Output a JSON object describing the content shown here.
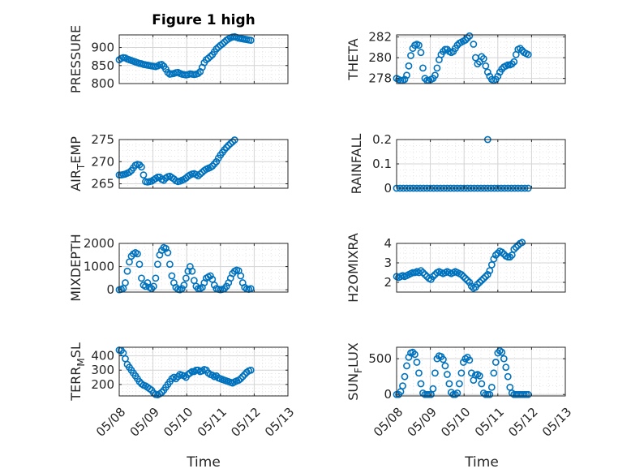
{
  "figure": {
    "title": "Figure 1 high",
    "xlabel": "Time"
  },
  "chart_data": [
    {
      "type": "scatter",
      "ylabel": "PRESSURE",
      "ylim": [
        800,
        935
      ],
      "yticks": [
        800,
        850,
        900
      ],
      "xlim": [
        0,
        5
      ],
      "grid": "on",
      "minor_grid": "on",
      "marker": "o",
      "color": "#0072BD",
      "x": [
        0,
        0.06,
        0.12,
        0.18,
        0.24,
        0.3,
        0.36,
        0.42,
        0.48,
        0.54,
        0.6,
        0.66,
        0.72,
        0.78,
        0.84,
        0.9,
        0.96,
        1.02,
        1.08,
        1.14,
        1.2,
        1.26,
        1.32,
        1.38,
        1.44,
        1.5,
        1.56,
        1.62,
        1.68,
        1.74,
        1.8,
        1.86,
        1.92,
        1.98,
        2.04,
        2.1,
        2.16,
        2.22,
        2.28,
        2.34,
        2.4,
        2.46,
        2.52,
        2.58,
        2.64,
        2.7,
        2.76,
        2.82,
        2.88,
        2.94,
        3.0,
        3.06,
        3.12,
        3.18,
        3.24,
        3.3,
        3.36,
        3.42,
        3.48,
        3.54,
        3.6,
        3.66,
        3.72,
        3.78,
        3.84,
        3.9
      ],
      "y": [
        866,
        870,
        872,
        871,
        868,
        866,
        864,
        862,
        860,
        858,
        856,
        855,
        853,
        852,
        851,
        850,
        849,
        848,
        847,
        849,
        852,
        853,
        848,
        840,
        831,
        826,
        827,
        828,
        830,
        831,
        828,
        826,
        825,
        824,
        825,
        827,
        826,
        825,
        826,
        828,
        833,
        845,
        858,
        866,
        870,
        875,
        880,
        888,
        896,
        901,
        906,
        910,
        915,
        920,
        924,
        927,
        929,
        930,
        928,
        926,
        925,
        924,
        923,
        922,
        921,
        920
      ]
    },
    {
      "type": "scatter",
      "ylabel": "THETA",
      "ylim": [
        277.5,
        282.2
      ],
      "yticks": [
        278,
        280,
        282
      ],
      "xlim": [
        0,
        5
      ],
      "grid": "on",
      "minor_grid": "on",
      "marker": "o",
      "color": "#0072BD",
      "x": [
        0,
        0.06,
        0.12,
        0.18,
        0.24,
        0.3,
        0.36,
        0.42,
        0.48,
        0.54,
        0.6,
        0.66,
        0.72,
        0.78,
        0.84,
        0.9,
        0.96,
        1.02,
        1.08,
        1.14,
        1.2,
        1.26,
        1.32,
        1.38,
        1.44,
        1.5,
        1.56,
        1.62,
        1.68,
        1.74,
        1.8,
        1.86,
        1.92,
        1.98,
        2.04,
        2.1,
        2.16,
        2.22,
        2.28,
        2.34,
        2.4,
        2.46,
        2.52,
        2.58,
        2.64,
        2.7,
        2.76,
        2.82,
        2.88,
        2.94,
        3.0,
        3.06,
        3.12,
        3.18,
        3.24,
        3.3,
        3.36,
        3.42,
        3.48,
        3.54,
        3.6,
        3.66,
        3.72,
        3.78,
        3.84,
        3.9
      ],
      "y": [
        278.0,
        277.9,
        277.8,
        277.8,
        277.9,
        278.3,
        279.2,
        280.2,
        280.9,
        281.2,
        281.3,
        281.2,
        280.5,
        279.0,
        278.0,
        277.8,
        277.8,
        277.9,
        278.0,
        278.3,
        279.0,
        279.8,
        280.3,
        280.6,
        280.8,
        280.8,
        280.6,
        280.5,
        280.6,
        280.9,
        281.2,
        281.4,
        281.5,
        281.6,
        281.7,
        281.9,
        282.1,
        282.3,
        281.3,
        280.0,
        279.4,
        279.6,
        280.1,
        279.9,
        279.2,
        278.6,
        278.2,
        277.9,
        277.8,
        277.9,
        278.2,
        278.6,
        278.9,
        279.1,
        279.2,
        279.3,
        279.3,
        279.4,
        279.6,
        280.3,
        280.8,
        280.9,
        280.7,
        280.5,
        280.4,
        280.3
      ]
    },
    {
      "type": "scatter",
      "ylabel": "AIR_TEMP",
      "ylim": [
        264,
        275
      ],
      "yticks": [
        265,
        270,
        275
      ],
      "xlim": [
        0,
        5
      ],
      "grid": "on",
      "minor_grid": "on",
      "marker": "o",
      "color": "#0072BD",
      "x": [
        0,
        0.06,
        0.12,
        0.18,
        0.24,
        0.3,
        0.36,
        0.42,
        0.48,
        0.54,
        0.6,
        0.66,
        0.72,
        0.78,
        0.84,
        0.9,
        0.96,
        1.02,
        1.08,
        1.14,
        1.2,
        1.26,
        1.32,
        1.38,
        1.44,
        1.5,
        1.56,
        1.62,
        1.68,
        1.74,
        1.8,
        1.86,
        1.92,
        1.98,
        2.04,
        2.1,
        2.16,
        2.22,
        2.28,
        2.34,
        2.4,
        2.46,
        2.52,
        2.58,
        2.64,
        2.7,
        2.76,
        2.82,
        2.88,
        2.94,
        3.0,
        3.06,
        3.12,
        3.18,
        3.24,
        3.3,
        3.36,
        3.42,
        3.48,
        3.54,
        3.6,
        3.66,
        3.72,
        3.78,
        3.84,
        3.9
      ],
      "y": [
        267,
        267,
        267.1,
        267.2,
        267.4,
        267.6,
        268,
        268.6,
        269.2,
        269.4,
        269.3,
        268.8,
        267,
        265.5,
        265.4,
        265.5,
        265.6,
        265.9,
        266.2,
        266.5,
        266.5,
        266,
        265.8,
        266.3,
        266.6,
        266.7,
        266.4,
        266.1,
        265.7,
        265.5,
        265.6,
        265.8,
        266,
        266.3,
        266.7,
        267,
        267.2,
        267.3,
        267.1,
        266.8,
        267.2,
        267.6,
        268,
        268.3,
        268.5,
        268.7,
        269,
        269.5,
        270,
        270.8,
        271.5,
        272.1,
        272.7,
        273.2,
        273.7,
        274.1,
        274.5,
        274.9,
        275.3,
        275.7,
        276,
        276.3,
        276.6,
        276.9,
        277.2,
        277.5
      ]
    },
    {
      "type": "scatter",
      "ylabel": "RAINFALL",
      "ylim": [
        0,
        0.2
      ],
      "yticks": [
        0,
        0.1,
        0.2
      ],
      "xlim": [
        0,
        5
      ],
      "grid": "on",
      "minor_grid": "on",
      "marker": "o",
      "color": "#0072BD",
      "x": [
        0,
        0.1,
        0.2,
        0.3,
        0.4,
        0.5,
        0.6,
        0.7,
        0.8,
        0.9,
        1.0,
        1.1,
        1.2,
        1.3,
        1.4,
        1.5,
        1.6,
        1.7,
        1.8,
        1.9,
        2.0,
        2.1,
        2.2,
        2.3,
        2.4,
        2.5,
        2.6,
        2.7,
        2.8,
        2.9,
        3.0,
        3.1,
        3.2,
        3.3,
        3.4,
        3.5,
        3.6,
        3.7,
        3.8,
        3.9,
        2.7
      ],
      "y": [
        0,
        0,
        0,
        0,
        0,
        0,
        0,
        0,
        0,
        0,
        0,
        0,
        0,
        0,
        0,
        0,
        0,
        0,
        0,
        0,
        0,
        0,
        0,
        0,
        0,
        0,
        0,
        0,
        0,
        0,
        0,
        0,
        0,
        0,
        0,
        0,
        0,
        0,
        0,
        0,
        0.2
      ]
    },
    {
      "type": "scatter",
      "ylabel": "MIXDEPTH",
      "ylim": [
        -100,
        2000
      ],
      "yticks": [
        0,
        1000,
        2000
      ],
      "xlim": [
        0,
        5
      ],
      "grid": "on",
      "minor_grid": "on",
      "marker": "o",
      "color": "#0072BD",
      "x": [
        0,
        0.06,
        0.12,
        0.18,
        0.24,
        0.3,
        0.36,
        0.42,
        0.48,
        0.54,
        0.6,
        0.66,
        0.72,
        0.78,
        0.84,
        0.9,
        0.96,
        1.02,
        1.08,
        1.14,
        1.2,
        1.26,
        1.32,
        1.38,
        1.44,
        1.5,
        1.56,
        1.62,
        1.68,
        1.74,
        1.8,
        1.86,
        1.92,
        1.98,
        2.04,
        2.1,
        2.16,
        2.22,
        2.28,
        2.34,
        2.4,
        2.46,
        2.52,
        2.58,
        2.64,
        2.7,
        2.76,
        2.82,
        2.88,
        2.94,
        3.0,
        3.06,
        3.12,
        3.18,
        3.24,
        3.3,
        3.36,
        3.42,
        3.48,
        3.54,
        3.6,
        3.66,
        3.72,
        3.78,
        3.84,
        3.9
      ],
      "y": [
        0,
        20,
        60,
        300,
        800,
        1200,
        1450,
        1550,
        1600,
        1550,
        1100,
        500,
        200,
        150,
        300,
        100,
        50,
        150,
        500,
        1100,
        1500,
        1700,
        1820,
        1780,
        1600,
        1100,
        600,
        300,
        100,
        20,
        0,
        50,
        200,
        500,
        800,
        1000,
        800,
        400,
        150,
        50,
        50,
        100,
        300,
        500,
        550,
        600,
        450,
        200,
        50,
        20,
        0,
        20,
        50,
        150,
        300,
        500,
        700,
        800,
        850,
        820,
        600,
        300,
        100,
        30,
        20,
        50
      ]
    },
    {
      "type": "scatter",
      "ylabel": "H2OMIXRA",
      "ylim": [
        1.5,
        4
      ],
      "yticks": [
        2,
        3,
        4
      ],
      "xlim": [
        0,
        5
      ],
      "grid": "on",
      "minor_grid": "on",
      "marker": "o",
      "color": "#0072BD",
      "x": [
        0,
        0.06,
        0.12,
        0.18,
        0.24,
        0.3,
        0.36,
        0.42,
        0.48,
        0.54,
        0.6,
        0.66,
        0.72,
        0.78,
        0.84,
        0.9,
        0.96,
        1.02,
        1.08,
        1.14,
        1.2,
        1.26,
        1.32,
        1.38,
        1.44,
        1.5,
        1.56,
        1.62,
        1.68,
        1.74,
        1.8,
        1.86,
        1.92,
        1.98,
        2.04,
        2.1,
        2.16,
        2.22,
        2.28,
        2.34,
        2.4,
        2.46,
        2.52,
        2.58,
        2.64,
        2.7,
        2.76,
        2.82,
        2.88,
        2.94,
        3.0,
        3.06,
        3.12,
        3.18,
        3.24,
        3.3,
        3.36,
        3.42,
        3.48,
        3.54,
        3.6,
        3.66,
        3.72,
        3.78,
        3.84,
        3.9
      ],
      "y": [
        2.3,
        2.25,
        2.3,
        2.35,
        2.3,
        2.35,
        2.4,
        2.45,
        2.5,
        2.5,
        2.55,
        2.5,
        2.6,
        2.5,
        2.4,
        2.3,
        2.2,
        2.15,
        2.3,
        2.4,
        2.5,
        2.55,
        2.5,
        2.45,
        2.5,
        2.55,
        2.5,
        2.45,
        2.5,
        2.55,
        2.5,
        2.45,
        2.4,
        2.3,
        2.2,
        2.1,
        2.0,
        1.8,
        1.7,
        1.75,
        1.9,
        2.0,
        2.1,
        2.2,
        2.3,
        2.4,
        2.6,
        2.9,
        3.2,
        3.4,
        3.5,
        3.6,
        3.55,
        3.45,
        3.35,
        3.3,
        3.3,
        3.4,
        3.7,
        3.8,
        3.9,
        4.0,
        4.05,
        4.1,
        4.15,
        4.2
      ]
    },
    {
      "type": "scatter",
      "ylabel": "TERR_MSL",
      "ylim": [
        120,
        460
      ],
      "yticks": [
        200,
        300,
        400
      ],
      "xlim": [
        0,
        5
      ],
      "grid": "on",
      "minor_grid": "on",
      "marker": "o",
      "color": "#0072BD",
      "x": [
        0,
        0.06,
        0.12,
        0.18,
        0.24,
        0.3,
        0.36,
        0.42,
        0.48,
        0.54,
        0.6,
        0.66,
        0.72,
        0.78,
        0.84,
        0.9,
        0.96,
        1.02,
        1.08,
        1.14,
        1.2,
        1.26,
        1.32,
        1.38,
        1.44,
        1.5,
        1.56,
        1.62,
        1.68,
        1.74,
        1.8,
        1.86,
        1.92,
        1.98,
        2.04,
        2.1,
        2.16,
        2.22,
        2.28,
        2.34,
        2.4,
        2.46,
        2.52,
        2.58,
        2.64,
        2.7,
        2.76,
        2.82,
        2.88,
        2.94,
        3.0,
        3.06,
        3.12,
        3.18,
        3.24,
        3.3,
        3.36,
        3.42,
        3.48,
        3.54,
        3.6,
        3.66,
        3.72,
        3.78,
        3.84,
        3.9
      ],
      "y": [
        440,
        438,
        420,
        380,
        340,
        320,
        300,
        280,
        260,
        240,
        220,
        205,
        195,
        190,
        180,
        170,
        160,
        140,
        130,
        128,
        135,
        145,
        160,
        180,
        200,
        220,
        240,
        250,
        240,
        255,
        270,
        265,
        260,
        250,
        270,
        280,
        290,
        290,
        300,
        300,
        290,
        295,
        305,
        300,
        280,
        270,
        265,
        255,
        260,
        245,
        240,
        235,
        230,
        225,
        220,
        215,
        210,
        218,
        225,
        230,
        240,
        255,
        270,
        285,
        295,
        300
      ]
    },
    {
      "type": "scatter",
      "ylabel": "SUN_FLUX",
      "ylim": [
        -20,
        660
      ],
      "yticks": [
        0,
        500
      ],
      "xlim": [
        0,
        5
      ],
      "grid": "on",
      "minor_grid": "on",
      "marker": "o",
      "color": "#0072BD",
      "x": [
        0,
        0.06,
        0.12,
        0.18,
        0.24,
        0.3,
        0.36,
        0.42,
        0.48,
        0.54,
        0.6,
        0.66,
        0.72,
        0.78,
        0.84,
        0.9,
        0.96,
        1.02,
        1.08,
        1.14,
        1.2,
        1.26,
        1.32,
        1.38,
        1.44,
        1.5,
        1.56,
        1.62,
        1.68,
        1.74,
        1.8,
        1.86,
        1.92,
        1.98,
        2.04,
        2.1,
        2.16,
        2.22,
        2.28,
        2.34,
        2.4,
        2.46,
        2.52,
        2.58,
        2.64,
        2.7,
        2.76,
        2.82,
        2.88,
        2.94,
        3.0,
        3.06,
        3.12,
        3.18,
        3.24,
        3.3,
        3.36,
        3.42,
        3.48,
        3.54,
        3.6,
        3.66,
        3.72,
        3.78,
        3.84,
        3.9
      ],
      "y": [
        0,
        0,
        40,
        120,
        250,
        400,
        520,
        580,
        590,
        560,
        450,
        300,
        150,
        20,
        0,
        0,
        0,
        0,
        80,
        300,
        500,
        540,
        530,
        490,
        400,
        280,
        150,
        30,
        0,
        0,
        20,
        150,
        300,
        450,
        500,
        520,
        480,
        300,
        200,
        270,
        280,
        260,
        150,
        20,
        0,
        0,
        0,
        100,
        300,
        450,
        580,
        610,
        590,
        500,
        380,
        250,
        100,
        20,
        0,
        0,
        0,
        0,
        0,
        0,
        0,
        0
      ]
    }
  ],
  "x_axis": {
    "range_dates": [
      "05/08",
      "05/13"
    ],
    "tick_labels": [
      "05/08",
      "05/09",
      "05/10",
      "05/11",
      "05/12",
      "05/13"
    ]
  },
  "colors": {
    "marker": "#0072BD",
    "axes": "#262626",
    "grid": "#dfdfdf"
  }
}
